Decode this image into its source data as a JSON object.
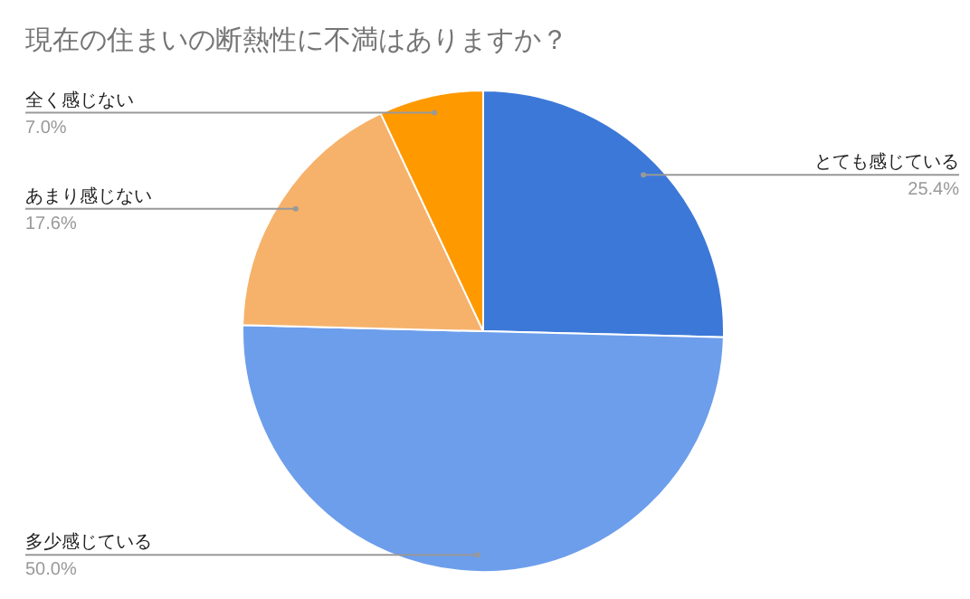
{
  "chart_data": {
    "type": "pie",
    "title": "現在の住まいの断熱性に不満はありますか？",
    "categories": [
      "とても感じている",
      "多少感じている",
      "あまり感じない",
      "全く感じない"
    ],
    "values": [
      25.4,
      50.0,
      17.6,
      7.0
    ],
    "value_labels": [
      "25.4%",
      "50.0%",
      "17.6%",
      "7.0%"
    ],
    "colors": [
      "#3c78d8",
      "#6d9eeb",
      "#f6b26b",
      "#ff9900"
    ]
  }
}
